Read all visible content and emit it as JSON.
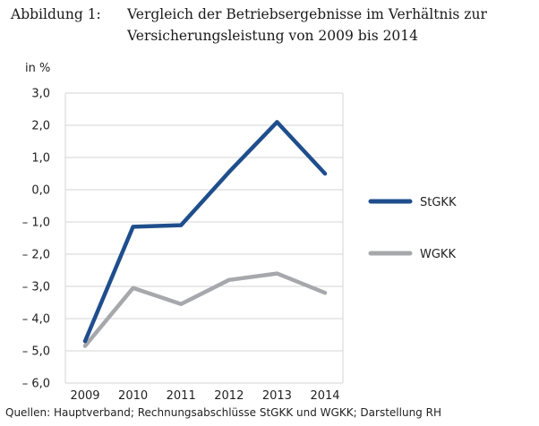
{
  "figure": {
    "label": "Abbildung 1:",
    "title_line1": "Vergleich der Betriebsergebnisse im Verhältnis zur",
    "title_line2": "Versicherungsleistung von 2009 bis 2014",
    "source": "Quellen: Hauptverband; Rechnungsabschlüsse StGKK und WGKK; Darstellung RH"
  },
  "chart_data": {
    "type": "line",
    "title": "Vergleich der Betriebsergebnisse im Verhältnis zur Versicherungsleistung von 2009 bis 2014",
    "xlabel": "",
    "ylabel": "in %",
    "x": [
      "2009",
      "2010",
      "2011",
      "2012",
      "2013",
      "2014"
    ],
    "ylim": [
      -6.0,
      3.0
    ],
    "yticks": [
      "3,0",
      "2,0",
      "1,0",
      "0,0",
      "– 1,0",
      "– 2,0",
      "– 3,0",
      "– 4,0",
      "– 5,0",
      "– 6,0"
    ],
    "ytick_values": [
      3,
      2,
      1,
      0,
      -1,
      -2,
      -3,
      -4,
      -5,
      -6
    ],
    "grid": true,
    "legend_position": "right",
    "series": [
      {
        "name": "StGKK",
        "color": "#1f4e8c",
        "values": [
          -4.7,
          -1.15,
          -1.1,
          0.55,
          2.1,
          0.5
        ]
      },
      {
        "name": "WGKK",
        "color": "#a6a8ab",
        "values": [
          -4.85,
          -3.05,
          -3.55,
          -2.8,
          -2.6,
          -3.2
        ]
      }
    ]
  }
}
